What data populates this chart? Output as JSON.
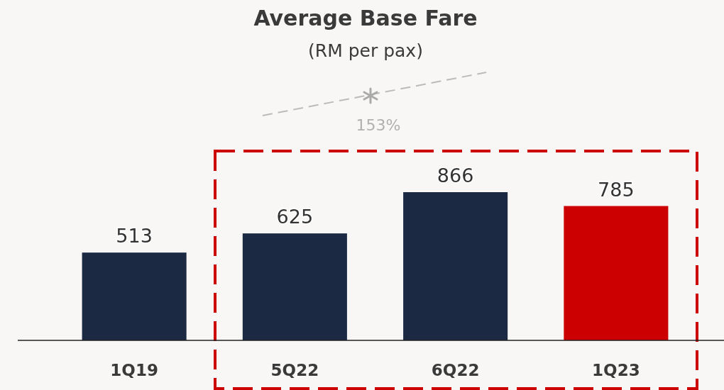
{
  "chart_data": {
    "type": "bar",
    "title": "Average Base Fare",
    "subtitle": "(RM per pax)",
    "categories": [
      "1Q19",
      "5Q22",
      "6Q22",
      "1Q23"
    ],
    "values": [
      513,
      625,
      866,
      785
    ],
    "colors": [
      "#1b2942",
      "#1b2942",
      "#1b2942",
      "#cc0000"
    ],
    "data_labels": true,
    "annotations": [
      "153%"
    ]
  }
}
